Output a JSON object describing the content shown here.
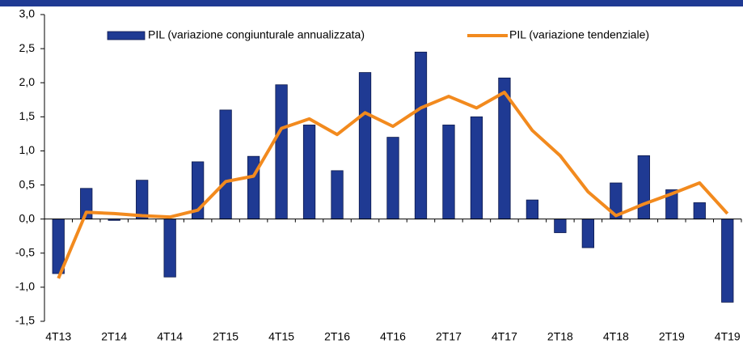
{
  "chart_data": {
    "type": "bar_line",
    "categories": [
      "4T13",
      null,
      "2T14",
      null,
      "4T14",
      null,
      "2T15",
      null,
      "4T15",
      null,
      "2T16",
      null,
      "4T16",
      null,
      "2T17",
      null,
      "4T17",
      null,
      "2T18",
      null,
      "4T18",
      null,
      "2T19",
      null,
      "4T19"
    ],
    "series": [
      {
        "name": "PIL (variazione congiunturale annualizzata)",
        "type": "bar",
        "color": "#1f3a93",
        "values": [
          -0.8,
          0.45,
          -0.02,
          0.57,
          -0.85,
          0.84,
          1.6,
          0.92,
          1.97,
          1.38,
          0.71,
          2.15,
          1.2,
          2.45,
          1.38,
          1.5,
          2.07,
          0.28,
          -0.2,
          -0.42,
          0.53,
          0.93,
          0.43,
          0.24,
          -1.22
        ]
      },
      {
        "name": "PIL (variazione tendenziale)",
        "type": "line",
        "color": "#f28a1e",
        "values": [
          -0.87,
          0.1,
          0.08,
          0.05,
          0.03,
          0.13,
          0.55,
          0.63,
          1.33,
          1.47,
          1.24,
          1.56,
          1.36,
          1.63,
          1.8,
          1.63,
          1.86,
          1.3,
          0.93,
          0.4,
          0.05,
          0.22,
          0.37,
          0.53,
          0.08
        ]
      }
    ],
    "ylim": [
      -1.5,
      3.0
    ],
    "yticks": [
      {
        "value": -1.5,
        "label": "-1,5"
      },
      {
        "value": -1.0,
        "label": "-1,0"
      },
      {
        "value": -0.5,
        "label": "-0,5"
      },
      {
        "value": 0,
        "label": "0,0"
      },
      {
        "value": 0.5,
        "label": "0,5"
      },
      {
        "value": 1.0,
        "label": "1,0"
      },
      {
        "value": 1.5,
        "label": "1,5"
      },
      {
        "value": 2.0,
        "label": "2,0"
      },
      {
        "value": 2.5,
        "label": "2,5"
      },
      {
        "value": 3.0,
        "label": "3,0"
      }
    ],
    "grid": false,
    "legend": "top"
  }
}
